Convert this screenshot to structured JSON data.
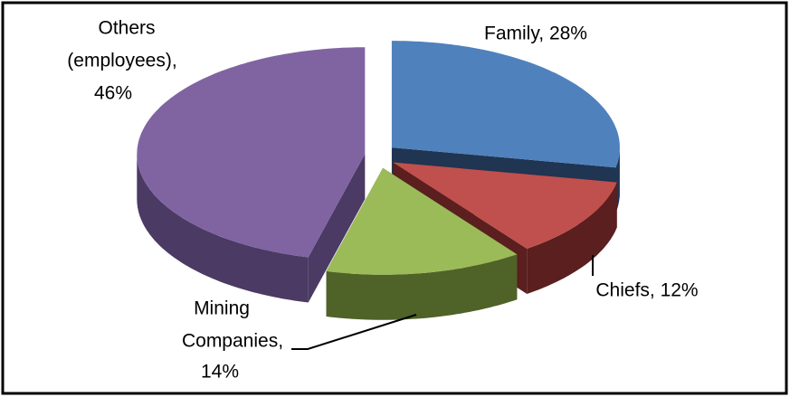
{
  "chart_data": {
    "type": "pie",
    "values": [
      28,
      12,
      14,
      46
    ],
    "labels": [
      [
        "Family, 28%"
      ],
      [
        "Chiefs, 12%"
      ],
      [
        "Mining",
        "Companies,",
        "14%"
      ],
      [
        "Others",
        "(employees),",
        "46%"
      ]
    ],
    "colors": [
      "#4f81bd",
      "#c0504d",
      "#9bbb59",
      "#8064a2"
    ],
    "side_colors": [
      "#1f3552",
      "#5a1f1e",
      "#4f6228",
      "#4b3a63"
    ]
  }
}
